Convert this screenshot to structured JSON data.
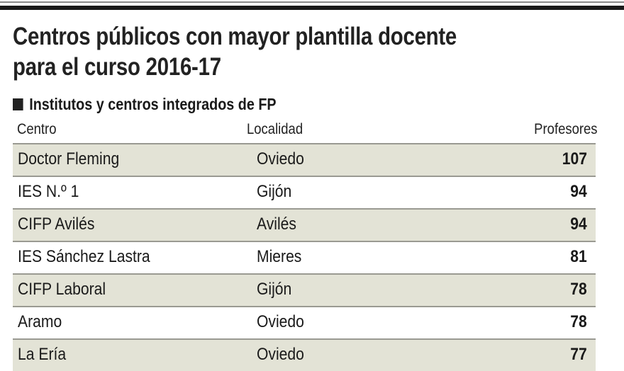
{
  "title_lines": [
    "Centros públicos con mayor plantilla docente",
    "para el curso 2016-17"
  ],
  "subtitle": "Institutos y centros integrados de FP",
  "colors": {
    "row_shade": "#e3e3d6",
    "text": "#1a1a1a"
  },
  "chart_data": {
    "type": "table",
    "title": "Centros públicos con mayor plantilla docente para el curso 2016-17",
    "subtitle": "Institutos y centros integrados de FP",
    "columns": [
      "Centro",
      "Localidad",
      "Profesores"
    ],
    "rows": [
      [
        "Doctor Fleming",
        "Oviedo",
        "107"
      ],
      [
        "IES N.º 1",
        "Gijón",
        "94"
      ],
      [
        "CIFP Avilés",
        "Avilés",
        "94"
      ],
      [
        "IES Sánchez Lastra",
        "Mieres",
        "81"
      ],
      [
        "CIFP Laboral",
        "Gijón",
        "78"
      ],
      [
        "Aramo",
        "Oviedo",
        "78"
      ],
      [
        "La Ería",
        "Oviedo",
        "77"
      ]
    ]
  }
}
